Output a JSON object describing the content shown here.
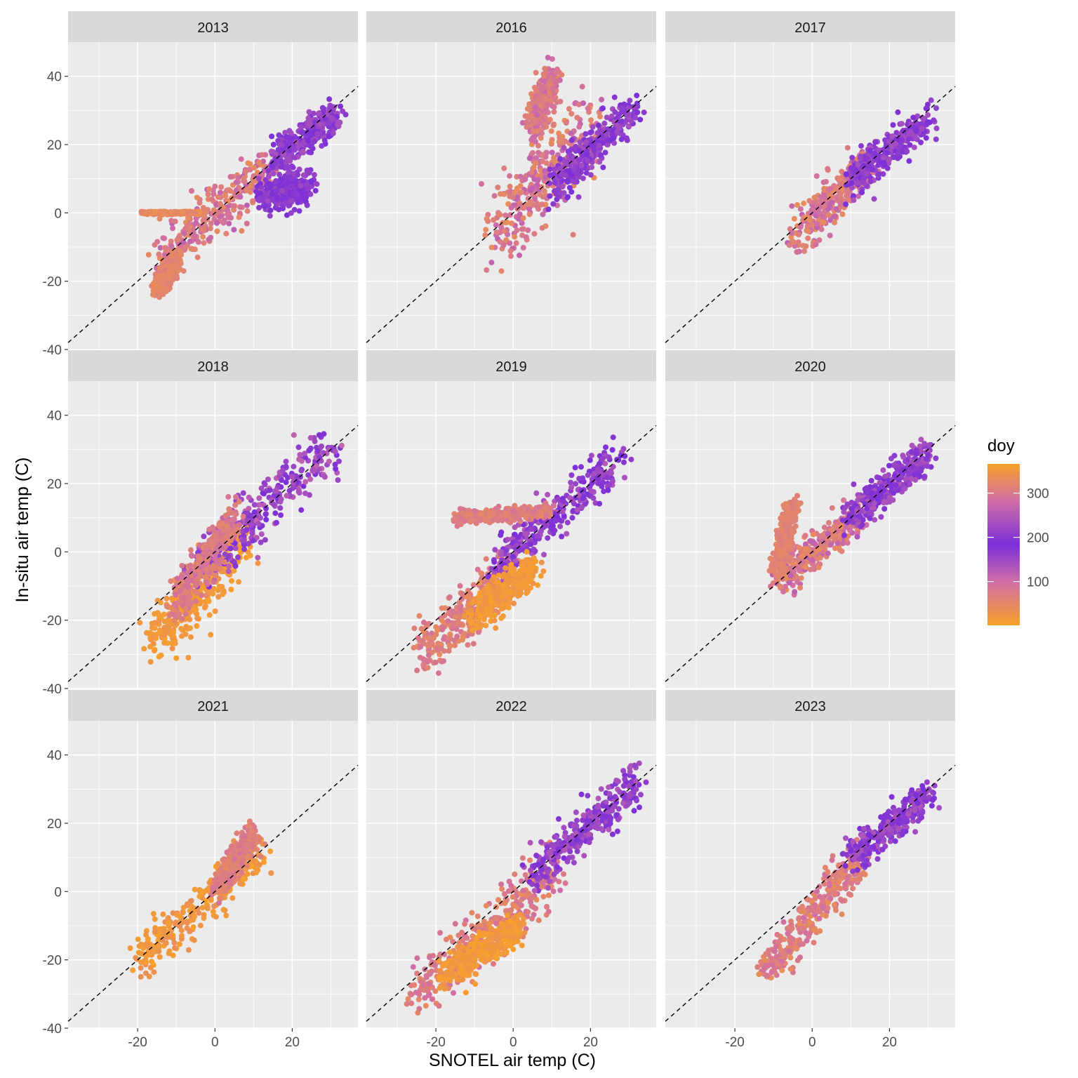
{
  "chart_data": {
    "type": "scatter",
    "xlabel": "SNOTEL air temp (C)",
    "ylabel": "In-situ air temp (C)",
    "xlim": [
      -38,
      37
    ],
    "ylim": [
      -40,
      50
    ],
    "x_ticks": [
      -20,
      0,
      20
    ],
    "y_ticks": [
      -40,
      -20,
      0,
      20,
      40
    ],
    "reference_line": {
      "type": "1:1",
      "style": "dashed"
    },
    "legend": {
      "title": "doy",
      "type": "colorbar",
      "range": [
        1,
        366
      ],
      "labels": [
        100,
        200,
        300
      ],
      "colors": {
        "low": "#f8a02a",
        "mid": "#7b2fd8",
        "high": "#f8a02a"
      }
    },
    "panels": [
      {
        "title": "2013",
        "clusters": [
          {
            "x": [
              -15,
              15
            ],
            "y": [
              -15,
              15
            ],
            "spread": 3.5,
            "doy": [
              250,
              330
            ]
          },
          {
            "x": [
              15,
              31
            ],
            "y": [
              15,
              29
            ],
            "spread": 2.5,
            "doy": [
              170,
              230
            ]
          },
          {
            "x": [
              12,
              24
            ],
            "y": [
              5,
              8
            ],
            "spread": 2.5,
            "doy": [
              180,
              220
            ]
          },
          {
            "x": [
              -19,
              -3
            ],
            "y": [
              0,
              0
            ],
            "spread": 0.2,
            "doy": [
              310,
              340
            ]
          },
          {
            "x": [
              -15,
              -10
            ],
            "y": [
              -23,
              -14
            ],
            "spread": 1.5,
            "doy": [
              300,
              330
            ]
          }
        ]
      },
      {
        "title": "2016",
        "clusters": [
          {
            "x": [
              -4,
              20
            ],
            "y": [
              -5,
              25
            ],
            "spread": 6,
            "doy": [
              250,
              330
            ]
          },
          {
            "x": [
              10,
              31
            ],
            "y": [
              8,
              30
            ],
            "spread": 3,
            "doy": [
              170,
              230
            ]
          },
          {
            "x": [
              5,
              10
            ],
            "y": [
              25,
              40
            ],
            "spread": 2.5,
            "doy": [
              260,
              320
            ]
          }
        ]
      },
      {
        "title": "2017",
        "clusters": [
          {
            "x": [
              -5,
              15
            ],
            "y": [
              -8,
              15
            ],
            "spread": 3,
            "doy": [
              250,
              330
            ]
          },
          {
            "x": [
              10,
              30
            ],
            "y": [
              10,
              27
            ],
            "spread": 2.5,
            "doy": [
              170,
              230
            ]
          }
        ]
      },
      {
        "title": "2018",
        "clusters": [
          {
            "x": [
              -16,
              8
            ],
            "y": [
              -27,
              5
            ],
            "spread": 4,
            "doy": [
              340,
              366
            ]
          },
          {
            "x": [
              -5,
              30
            ],
            "y": [
              -5,
              30
            ],
            "spread": 4,
            "doy": [
              170,
              260
            ]
          },
          {
            "x": [
              -10,
              5
            ],
            "y": [
              -15,
              10
            ],
            "spread": 3,
            "doy": [
              270,
              320
            ]
          }
        ]
      },
      {
        "title": "2019",
        "clusters": [
          {
            "x": [
              -24,
              0
            ],
            "y": [
              -30,
              -5
            ],
            "spread": 4,
            "doy": [
              280,
              330
            ]
          },
          {
            "x": [
              -5,
              28
            ],
            "y": [
              -5,
              27
            ],
            "spread": 3,
            "doy": [
              170,
              240
            ]
          },
          {
            "x": [
              -15,
              10
            ],
            "y": [
              10,
              12
            ],
            "spread": 1,
            "doy": [
              280,
              320
            ]
          },
          {
            "x": [
              -10,
              5
            ],
            "y": [
              -18,
              -5
            ],
            "spread": 3,
            "doy": [
              340,
              366
            ]
          }
        ]
      },
      {
        "title": "2020",
        "clusters": [
          {
            "x": [
              -9,
              12
            ],
            "y": [
              -8,
              10
            ],
            "spread": 2.5,
            "doy": [
              250,
              330
            ]
          },
          {
            "x": [
              10,
              30
            ],
            "y": [
              10,
              29
            ],
            "spread": 2.5,
            "doy": [
              170,
              240
            ]
          },
          {
            "x": [
              -9,
              -5
            ],
            "y": [
              -5,
              14
            ],
            "spread": 2,
            "doy": [
              300,
              320
            ]
          }
        ]
      },
      {
        "title": "2021",
        "clusters": [
          {
            "x": [
              -20,
              12
            ],
            "y": [
              -20,
              12
            ],
            "spread": 3,
            "doy": [
              330,
              366
            ]
          },
          {
            "x": [
              0,
              10
            ],
            "y": [
              0,
              17
            ],
            "spread": 2,
            "doy": [
              280,
              320
            ]
          }
        ]
      },
      {
        "title": "2022",
        "clusters": [
          {
            "x": [
              -25,
              10
            ],
            "y": [
              -30,
              5
            ],
            "spread": 4,
            "doy": [
              270,
              330
            ]
          },
          {
            "x": [
              5,
              32
            ],
            "y": [
              5,
              32
            ],
            "spread": 3,
            "doy": [
              170,
              240
            ]
          },
          {
            "x": [
              -18,
              2
            ],
            "y": [
              -25,
              -10
            ],
            "spread": 2.5,
            "doy": [
              340,
              366
            ]
          }
        ]
      },
      {
        "title": "2023",
        "clusters": [
          {
            "x": [
              -13,
              12
            ],
            "y": [
              -25,
              10
            ],
            "spread": 3,
            "doy": [
              270,
              330
            ]
          },
          {
            "x": [
              10,
              30
            ],
            "y": [
              10,
              28
            ],
            "spread": 2.5,
            "doy": [
              170,
              240
            ]
          }
        ]
      }
    ]
  }
}
